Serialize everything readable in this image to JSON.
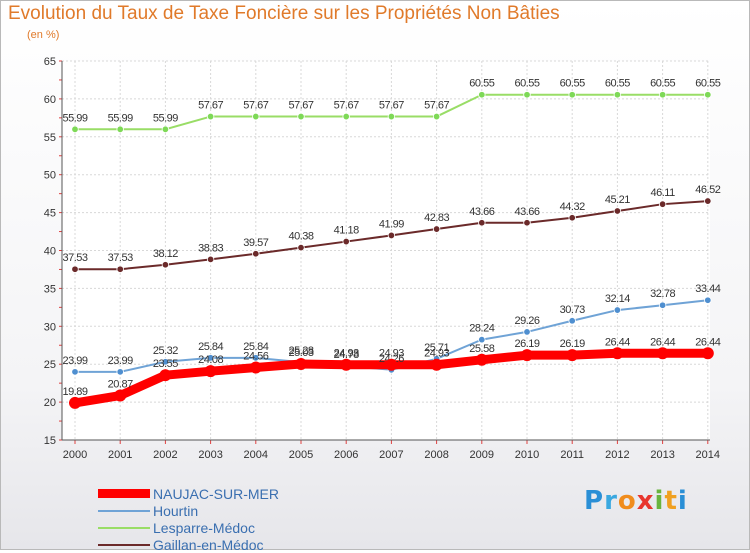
{
  "header": {
    "title": "Evolution du Taux de Taxe Foncière sur les Propriétés Non Bâties",
    "subtitle": "(en %)"
  },
  "logo": {
    "text": "Proxiti",
    "letters": [
      {
        "ch": "P",
        "color": "#2a8fd6"
      },
      {
        "ch": "r",
        "color": "#3aa8e0"
      },
      {
        "ch": "o",
        "color": "#f08c1c"
      },
      {
        "ch": "x",
        "color": "#e8362e"
      },
      {
        "ch": "i",
        "color": "#6ab43e"
      },
      {
        "ch": "t",
        "color": "#f0a020"
      },
      {
        "ch": "i",
        "color": "#2a8fd6"
      }
    ]
  },
  "legend": {
    "items": [
      {
        "label": "NAUJAC-SUR-MER",
        "color": "#ff0000",
        "width": 9
      },
      {
        "label": "Hourtin",
        "color": "#6fa3d6",
        "width": 2
      },
      {
        "label": "Lesparre-Médoc",
        "color": "#99dd66",
        "width": 2
      },
      {
        "label": "Gaillan-en-Médoc",
        "color": "#6b2a2a",
        "width": 2
      }
    ]
  },
  "chart_data": {
    "type": "line",
    "title": "Evolution du Taux de Taxe Foncière sur les Propriétés Non Bâties",
    "ylabel": "(en %)",
    "x": [
      "2000",
      "2001",
      "2002",
      "2003",
      "2004",
      "2005",
      "2006",
      "2007",
      "2008",
      "2009",
      "2010",
      "2011",
      "2012",
      "2013",
      "2014"
    ],
    "ylim": [
      15,
      65
    ],
    "yticks": [
      15,
      20,
      25,
      30,
      35,
      40,
      45,
      50,
      55,
      60,
      65
    ],
    "grid": true,
    "legend_position": "bottom-left",
    "series": [
      {
        "name": "Lesparre-Médoc",
        "color": "#99dd66",
        "marker": "#7ed957",
        "values": [
          55.99,
          55.99,
          55.99,
          57.67,
          57.67,
          57.67,
          57.67,
          57.67,
          57.67,
          60.55,
          60.55,
          60.55,
          60.55,
          60.55,
          60.55
        ],
        "labels": [
          "55.99",
          "55.99",
          "55.99",
          "57.67",
          "57.67",
          "57.67",
          "57.67",
          "57.67",
          "57.67",
          "60.55",
          "60.55",
          "60.55",
          "60.55",
          "60.55",
          "60.55"
        ]
      },
      {
        "name": "Gaillan-en-Médoc",
        "color": "#6b2a2a",
        "marker": "#6b2a2a",
        "values": [
          37.53,
          37.53,
          38.12,
          38.83,
          39.57,
          40.38,
          41.18,
          41.99,
          42.83,
          43.66,
          43.66,
          44.32,
          45.21,
          46.11,
          46.52
        ],
        "labels": [
          "37.53",
          "37.53",
          "38.12",
          "38.83",
          "39.57",
          "40.38",
          "41.18",
          "41.99",
          "42.83",
          "43.66",
          "43.66",
          "44.32",
          "45.21",
          "46.11",
          "46.52"
        ]
      },
      {
        "name": "Hourtin",
        "color": "#6fa3d6",
        "marker": "#4f8fd0",
        "values": [
          23.99,
          23.99,
          25.32,
          25.84,
          25.84,
          25.28,
          24.78,
          24.26,
          25.71,
          28.24,
          29.26,
          30.73,
          32.14,
          32.78,
          33.44
        ],
        "labels": [
          "23.99",
          "23.99",
          "25.32",
          "25.84",
          "25.84",
          "25.28",
          "24.78",
          "24.26",
          "25.71",
          "28.24",
          "29.26",
          "30.73",
          "32.14",
          "32.78",
          "33.44"
        ]
      },
      {
        "name": "NAUJAC-SUR-MER",
        "color": "#ff0000",
        "marker": "#ff0000",
        "values": [
          19.89,
          20.87,
          23.55,
          24.08,
          24.56,
          25.03,
          24.93,
          24.93,
          24.93,
          25.58,
          26.19,
          26.19,
          26.44,
          26.44,
          26.44
        ],
        "labels": [
          "19.89",
          "20.87",
          "23.55",
          "24.08",
          "24.56",
          "25.03",
          "24.93",
          "24.93",
          "24.93",
          "25.58",
          "26.19",
          "26.19",
          "26.44",
          "26.44",
          "26.44"
        ]
      }
    ]
  }
}
